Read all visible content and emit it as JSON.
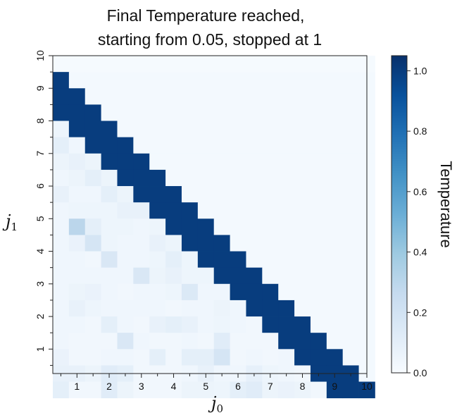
{
  "chart_data": {
    "type": "heatmap",
    "title_lines": [
      "Final Temperature reached,",
      "starting from 0.05, stopped at 1"
    ],
    "xlabel": "j",
    "xlabel_sub": "0",
    "ylabel": "j",
    "ylabel_sub": "1",
    "x_range": [
      0.25,
      10.0
    ],
    "y_range": [
      0.25,
      10.0
    ],
    "cell_size": 0.5,
    "x_ticks": [
      "1",
      "2",
      "3",
      "4",
      "5",
      "6",
      "7",
      "8",
      "9",
      "10"
    ],
    "y_ticks": [
      "1",
      "2",
      "3",
      "4",
      "5",
      "6",
      "7",
      "8",
      "9",
      "10"
    ],
    "colorbar": {
      "label": "Temperature",
      "ticks": [
        "0.0",
        "0.2",
        "0.4",
        "0.6",
        "0.8",
        "1.0"
      ],
      "range": [
        0.0,
        1.05
      ]
    },
    "rows_top_to_bottom": [
      [
        0.01,
        0.01,
        0.01,
        0.01,
        0.01,
        0.01,
        0.01,
        0.01,
        0.01,
        0.01,
        0.01,
        0.01,
        0.01,
        0.01,
        0.01,
        0.01,
        0.01,
        0.01,
        0.01,
        0.01
      ],
      [
        1.0,
        0.02,
        0.02,
        0.02,
        0.02,
        0.02,
        0.02,
        0.02,
        0.02,
        0.02,
        0.02,
        0.02,
        0.02,
        0.02,
        0.02,
        0.02,
        0.02,
        0.02,
        0.02,
        0.02
      ],
      [
        1.0,
        1.0,
        0.02,
        0.02,
        0.02,
        0.02,
        0.02,
        0.02,
        0.02,
        0.02,
        0.02,
        0.02,
        0.02,
        0.02,
        0.02,
        0.02,
        0.02,
        0.02,
        0.02,
        0.02
      ],
      [
        1.0,
        1.0,
        1.0,
        0.02,
        0.02,
        0.02,
        0.02,
        0.02,
        0.02,
        0.02,
        0.02,
        0.02,
        0.02,
        0.02,
        0.02,
        0.02,
        0.02,
        0.02,
        0.02,
        0.02
      ],
      [
        0.05,
        1.0,
        1.0,
        1.0,
        0.02,
        0.02,
        0.02,
        0.02,
        0.02,
        0.02,
        0.02,
        0.02,
        0.02,
        0.02,
        0.02,
        0.02,
        0.02,
        0.02,
        0.02,
        0.02
      ],
      [
        0.1,
        0.04,
        1.0,
        1.0,
        1.0,
        0.02,
        0.02,
        0.02,
        0.02,
        0.02,
        0.02,
        0.02,
        0.02,
        0.02,
        0.02,
        0.02,
        0.02,
        0.02,
        0.02,
        0.02
      ],
      [
        0.06,
        0.08,
        0.06,
        1.0,
        1.0,
        1.0,
        0.02,
        0.02,
        0.02,
        0.02,
        0.02,
        0.02,
        0.02,
        0.02,
        0.02,
        0.02,
        0.02,
        0.02,
        0.02,
        0.02
      ],
      [
        0.04,
        0.06,
        0.1,
        0.06,
        1.0,
        1.0,
        1.0,
        0.02,
        0.02,
        0.02,
        0.02,
        0.02,
        0.02,
        0.02,
        0.02,
        0.02,
        0.02,
        0.02,
        0.02,
        0.02
      ],
      [
        0.08,
        0.04,
        0.04,
        0.1,
        0.06,
        1.0,
        1.0,
        1.0,
        0.02,
        0.02,
        0.02,
        0.02,
        0.02,
        0.02,
        0.02,
        0.02,
        0.02,
        0.02,
        0.02,
        0.02
      ],
      [
        0.04,
        0.05,
        0.05,
        0.05,
        0.08,
        0.08,
        1.0,
        1.0,
        1.0,
        0.02,
        0.02,
        0.02,
        0.02,
        0.02,
        0.02,
        0.02,
        0.02,
        0.02,
        0.02,
        0.02
      ],
      [
        0.04,
        0.3,
        0.1,
        0.05,
        0.05,
        0.04,
        0.05,
        1.0,
        1.0,
        1.0,
        0.02,
        0.02,
        0.02,
        0.02,
        0.02,
        0.02,
        0.02,
        0.02,
        0.02,
        0.02
      ],
      [
        0.04,
        0.07,
        0.18,
        0.05,
        0.04,
        0.04,
        0.08,
        0.06,
        1.0,
        1.0,
        1.0,
        0.02,
        0.02,
        0.02,
        0.02,
        0.02,
        0.02,
        0.02,
        0.02,
        0.02
      ],
      [
        0.04,
        0.04,
        0.03,
        0.16,
        0.04,
        0.04,
        0.05,
        0.1,
        0.05,
        1.0,
        1.0,
        1.0,
        0.02,
        0.02,
        0.02,
        0.02,
        0.02,
        0.02,
        0.02,
        0.02
      ],
      [
        0.04,
        0.04,
        0.04,
        0.04,
        0.04,
        0.16,
        0.06,
        0.08,
        0.05,
        0.05,
        1.0,
        1.0,
        1.0,
        0.02,
        0.02,
        0.02,
        0.02,
        0.02,
        0.02,
        0.02
      ],
      [
        0.04,
        0.06,
        0.07,
        0.04,
        0.03,
        0.04,
        0.04,
        0.05,
        0.15,
        0.04,
        0.04,
        1.0,
        1.0,
        1.0,
        0.02,
        0.02,
        0.02,
        0.02,
        0.02,
        0.02
      ],
      [
        0.04,
        0.08,
        0.05,
        0.04,
        0.04,
        0.04,
        0.04,
        0.03,
        0.04,
        0.04,
        0.06,
        0.04,
        1.0,
        1.0,
        1.0,
        0.02,
        0.02,
        0.02,
        0.02,
        0.02
      ],
      [
        0.04,
        0.04,
        0.03,
        0.1,
        0.04,
        0.03,
        0.08,
        0.1,
        0.08,
        0.04,
        0.05,
        0.04,
        0.03,
        1.0,
        1.0,
        1.0,
        0.02,
        0.02,
        0.02,
        0.02
      ],
      [
        0.04,
        0.03,
        0.03,
        0.03,
        0.16,
        0.04,
        0.03,
        0.03,
        0.04,
        0.03,
        0.12,
        0.03,
        0.03,
        0.03,
        1.0,
        1.0,
        1.0,
        0.02,
        0.02,
        0.02
      ],
      [
        0.07,
        0.03,
        0.03,
        0.04,
        0.04,
        0.03,
        0.1,
        0.03,
        0.1,
        0.1,
        0.18,
        0.03,
        0.04,
        0.03,
        0.04,
        1.0,
        1.0,
        1.0,
        0.02,
        0.02
      ],
      [
        0.08,
        0.08,
        0.06,
        0.12,
        0.1,
        0.03,
        0.03,
        0.03,
        0.04,
        0.08,
        0.04,
        0.04,
        0.09,
        0.05,
        0.04,
        0.03,
        1.0,
        1.0,
        1.0,
        0.02
      ],
      [
        0.1,
        0.03,
        0.03,
        0.12,
        0.06,
        0.03,
        0.03,
        0.03,
        0.06,
        0.06,
        0.05,
        0.1,
        0.12,
        0.06,
        0.07,
        0.06,
        0.03,
        1.0,
        1.0,
        1.0
      ]
    ]
  }
}
